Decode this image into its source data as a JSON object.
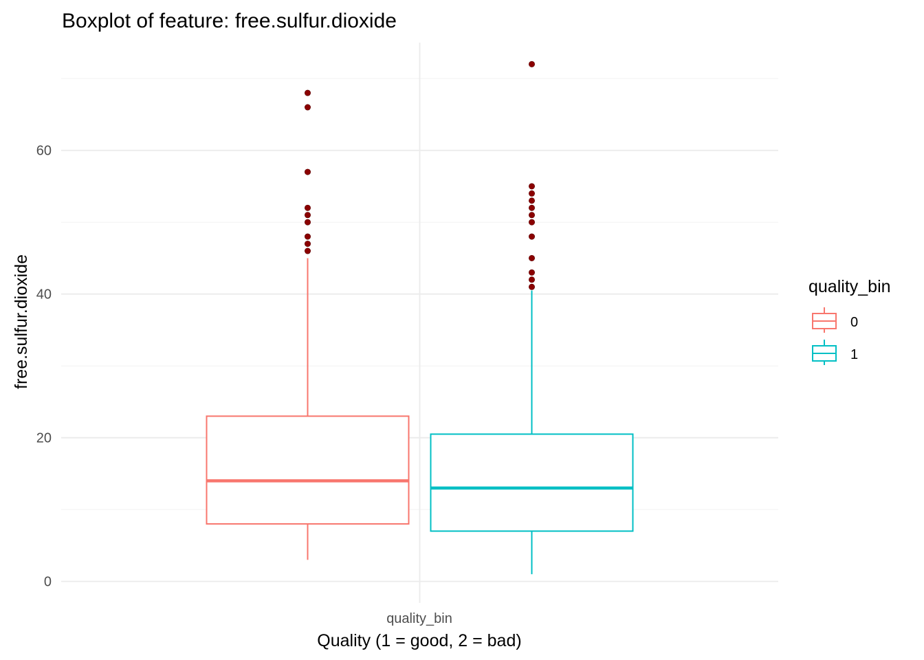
{
  "chart_data": {
    "type": "boxplot",
    "title": "Boxplot of feature: free.sulfur.dioxide",
    "xlabel": "Quality (1 = good, 2 = bad)",
    "ylabel": "free.sulfur.dioxide",
    "x_tick_label": "quality_bin",
    "ylim": [
      -3,
      75
    ],
    "y_ticks": [
      0,
      20,
      40,
      60
    ],
    "grid": true,
    "legend": {
      "title": "quality_bin",
      "position": "right"
    },
    "outlier_color": "#8b0000",
    "series": [
      {
        "name": "0",
        "color": "#f8766d",
        "whisker_low": 3,
        "q1": 8,
        "median": 14,
        "q3": 23,
        "whisker_high": 45,
        "outliers": [
          46,
          47,
          48,
          50,
          51,
          52,
          57,
          66,
          68
        ]
      },
      {
        "name": "1",
        "color": "#00bfc4",
        "whisker_low": 1,
        "q1": 7,
        "median": 13,
        "q3": 20.5,
        "whisker_high": 40.5,
        "outliers": [
          41,
          42,
          43,
          45,
          48,
          50,
          51,
          52,
          53,
          54,
          55,
          72
        ]
      }
    ]
  }
}
